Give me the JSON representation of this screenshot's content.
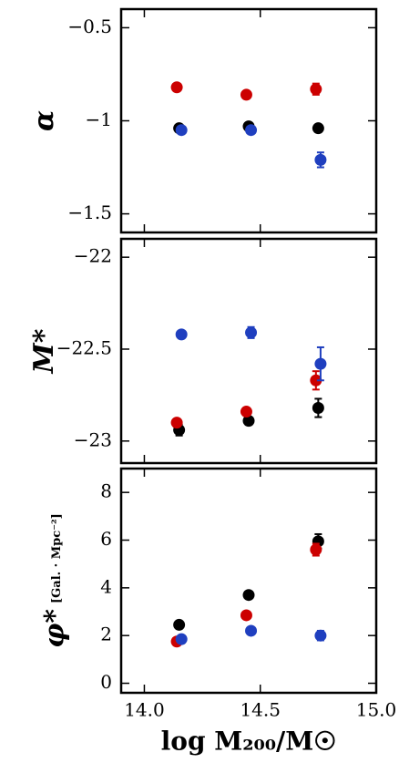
{
  "chart_data": [
    {
      "type": "scatter",
      "ylabel": "α",
      "xlim": [
        13.9,
        15.0
      ],
      "ylim": [
        -1.6,
        -0.4
      ],
      "yticks": [
        {
          "value": -0.5,
          "label": "−0.5"
        },
        {
          "value": -1,
          "label": "−1"
        },
        {
          "value": -1.5,
          "label": "−1.5"
        }
      ],
      "series": [
        {
          "color": "#cc0000",
          "x": [
            14.14,
            14.44,
            14.74
          ],
          "values": [
            -0.82,
            -0.86,
            -0.83
          ],
          "errors": [
            null,
            null,
            0.03
          ]
        },
        {
          "color": "#000000",
          "x": [
            14.15,
            14.45,
            14.75
          ],
          "values": [
            -1.04,
            -1.03,
            -1.04
          ],
          "errors": [
            null,
            null,
            null
          ]
        },
        {
          "color": "#1f3fbf",
          "x": [
            14.16,
            14.46,
            14.76
          ],
          "values": [
            -1.05,
            -1.05,
            -1.21
          ],
          "errors": [
            null,
            null,
            0.04
          ]
        }
      ]
    },
    {
      "type": "scatter",
      "ylabel": "M*",
      "xlim": [
        13.9,
        15.0
      ],
      "ylim": [
        -23.12,
        -21.9
      ],
      "yticks": [
        {
          "value": -22,
          "label": "−22"
        },
        {
          "value": -22.5,
          "label": "−22.5"
        },
        {
          "value": -23,
          "label": "−23"
        }
      ],
      "series": [
        {
          "color": "#000000",
          "x": [
            14.15,
            14.45,
            14.75
          ],
          "values": [
            -22.94,
            -22.89,
            -22.82
          ],
          "errors": [
            0.03,
            0.02,
            0.05
          ]
        },
        {
          "color": "#cc0000",
          "x": [
            14.14,
            14.44,
            14.74
          ],
          "values": [
            -22.9,
            -22.84,
            -22.67
          ],
          "errors": [
            0.02,
            0.02,
            0.05
          ]
        },
        {
          "color": "#1f3fbf",
          "x": [
            14.16,
            14.46,
            14.76
          ],
          "values": [
            -22.42,
            -22.41,
            -22.58
          ],
          "errors": [
            0.02,
            0.03,
            0.09
          ]
        }
      ]
    },
    {
      "type": "scatter",
      "ylabel": "φ*",
      "ylabel_units": "[Gal. · Mpc⁻²]",
      "xlabel": "log M₂₀₀/M☉",
      "xlim": [
        13.9,
        15.0
      ],
      "ylim": [
        -0.4,
        9.0
      ],
      "xticks": [
        {
          "value": 14.0,
          "label": "14.0"
        },
        {
          "value": 14.5,
          "label": "14.5"
        },
        {
          "value": 15.0,
          "label": "15.0"
        }
      ],
      "yticks": [
        0,
        2,
        4,
        6,
        8
      ],
      "series": [
        {
          "color": "#000000",
          "x": [
            14.15,
            14.45,
            14.75
          ],
          "values": [
            2.45,
            3.7,
            5.95
          ],
          "errors": [
            null,
            null,
            0.3
          ]
        },
        {
          "color": "#cc0000",
          "x": [
            14.14,
            14.44,
            14.74
          ],
          "values": [
            1.75,
            2.85,
            5.6
          ],
          "errors": [
            null,
            null,
            0.25
          ]
        },
        {
          "color": "#1f3fbf",
          "x": [
            14.16,
            14.46,
            14.76
          ],
          "values": [
            1.85,
            2.2,
            2.0
          ],
          "errors": [
            null,
            null,
            0.2
          ]
        }
      ]
    }
  ]
}
